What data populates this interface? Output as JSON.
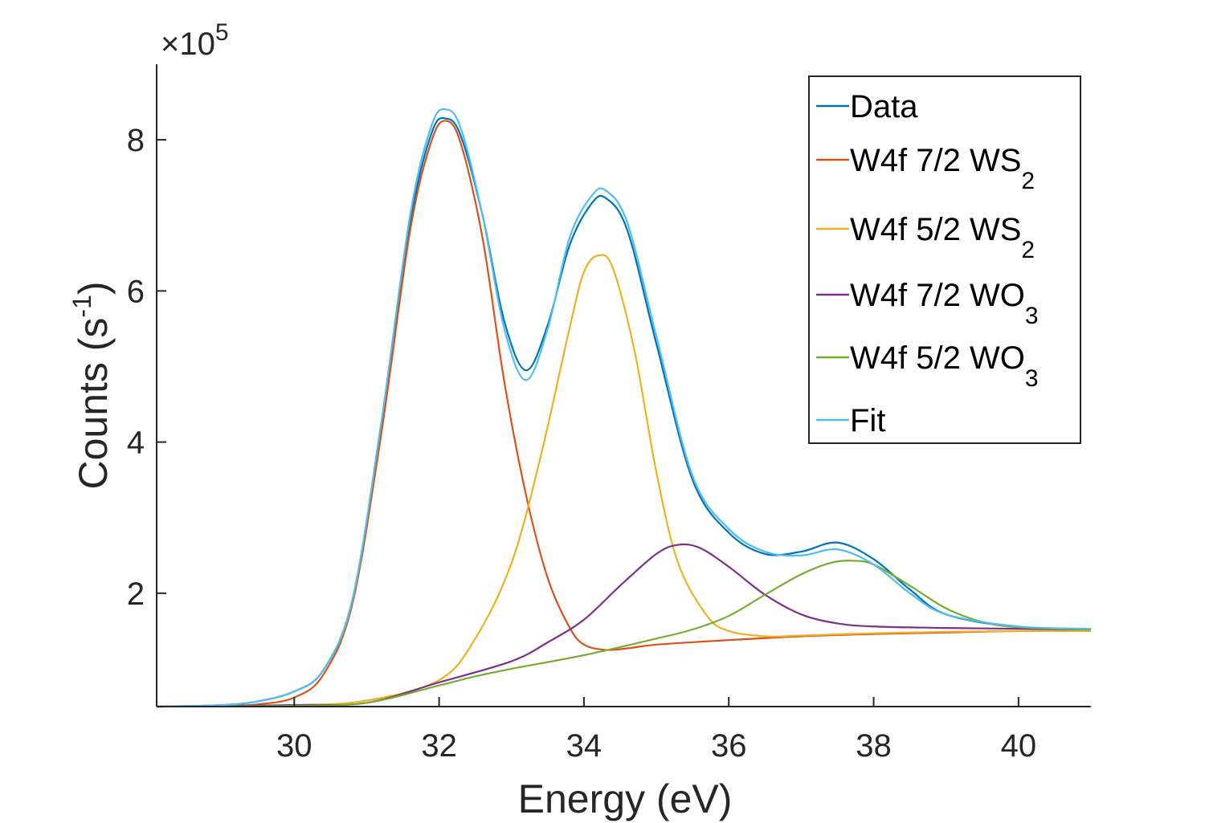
{
  "chart_data": {
    "type": "line",
    "xlabel": "Energy (eV)",
    "ylabel": "Counts (s",
    "ylabel_sup": "-1",
    "ylabel_close": ")",
    "exponent_prefix": "×10",
    "exponent_power": "5",
    "xlim": [
      28.1,
      41.0
    ],
    "ylim": [
      0.5,
      9.0
    ],
    "y_unit_multiplier": 100000,
    "x_ticks": [
      30,
      32,
      34,
      36,
      38,
      40
    ],
    "x_tick_labels": [
      "30",
      "32",
      "34",
      "36",
      "38",
      "40"
    ],
    "y_ticks": [
      2,
      4,
      6,
      8
    ],
    "y_tick_labels": [
      "2",
      "4",
      "6",
      "8"
    ],
    "grid": false,
    "legend_position": "top-right",
    "series": [
      {
        "name": "Data",
        "label_main": "Data",
        "label_sub": "",
        "color": "#0072BD",
        "x": [
          28.1,
          29.0,
          29.5,
          30.0,
          30.4,
          30.8,
          31.2,
          31.6,
          31.9,
          32.1,
          32.3,
          32.6,
          32.9,
          33.2,
          33.5,
          33.8,
          34.1,
          34.3,
          34.6,
          35.0,
          35.5,
          36.0,
          36.5,
          37.0,
          37.5,
          38.0,
          38.5,
          39.0,
          40.0,
          41.0
        ],
        "y": [
          0.5,
          0.52,
          0.57,
          0.7,
          0.98,
          1.9,
          4.2,
          6.9,
          8.1,
          8.28,
          8.05,
          7.0,
          5.6,
          4.95,
          5.55,
          6.6,
          7.15,
          7.23,
          6.8,
          5.3,
          3.5,
          2.8,
          2.52,
          2.55,
          2.67,
          2.45,
          2.05,
          1.72,
          1.55,
          1.52
        ]
      },
      {
        "name": "W4f 7/2 WS2",
        "label_main": "W4f 7/2 WS",
        "label_sub": "2",
        "color": "#D95319",
        "x": [
          28.1,
          29.0,
          29.5,
          30.0,
          30.4,
          30.8,
          31.2,
          31.6,
          31.9,
          32.1,
          32.3,
          32.6,
          32.9,
          33.2,
          33.5,
          33.8,
          34.0,
          34.3,
          34.6,
          35.0,
          36.0,
          37.0,
          38.0,
          39.0,
          40.0,
          41.0
        ],
        "y": [
          0.5,
          0.51,
          0.53,
          0.62,
          0.92,
          1.85,
          4.1,
          6.8,
          8.0,
          8.25,
          7.95,
          6.7,
          4.8,
          3.3,
          2.2,
          1.55,
          1.32,
          1.25,
          1.27,
          1.32,
          1.38,
          1.43,
          1.46,
          1.48,
          1.5,
          1.5
        ]
      },
      {
        "name": "W4f 5/2 WS2",
        "label_main": "W4f 5/2 WS",
        "label_sub": "2",
        "color": "#EDB120",
        "x": [
          28.1,
          30.0,
          31.0,
          32.0,
          32.5,
          33.0,
          33.4,
          33.8,
          34.0,
          34.2,
          34.4,
          34.7,
          35.0,
          35.3,
          35.7,
          36.0,
          36.5,
          37.0,
          38.0,
          39.0,
          40.0,
          41.0
        ],
        "y": [
          0.5,
          0.52,
          0.58,
          0.85,
          1.4,
          2.4,
          3.8,
          5.5,
          6.25,
          6.47,
          6.3,
          5.2,
          3.6,
          2.4,
          1.7,
          1.5,
          1.43,
          1.44,
          1.47,
          1.49,
          1.5,
          1.5
        ]
      },
      {
        "name": "W4f 7/2 WO3",
        "label_main": "W4f 7/2 WO",
        "label_sub": "3",
        "color": "#7E2F8E",
        "x": [
          28.1,
          30.0,
          31.0,
          32.0,
          33.0,
          33.5,
          34.0,
          34.5,
          35.0,
          35.3,
          35.6,
          36.0,
          36.5,
          37.0,
          37.5,
          38.0,
          39.0,
          40.0,
          41.0
        ],
        "y": [
          0.5,
          0.52,
          0.55,
          0.82,
          1.1,
          1.35,
          1.65,
          2.1,
          2.52,
          2.64,
          2.6,
          2.35,
          1.98,
          1.72,
          1.6,
          1.56,
          1.54,
          1.53,
          1.52
        ]
      },
      {
        "name": "W4f 5/2 WO3",
        "label_main": "W4f 5/2 WO",
        "label_sub": "3",
        "color": "#77AC30",
        "x": [
          28.1,
          30.0,
          31.0,
          32.0,
          32.5,
          33.0,
          34.0,
          35.0,
          35.5,
          36.0,
          36.5,
          37.0,
          37.4,
          37.7,
          38.0,
          38.5,
          39.0,
          39.5,
          40.0,
          41.0
        ],
        "y": [
          0.5,
          0.51,
          0.55,
          0.78,
          0.9,
          1.0,
          1.18,
          1.4,
          1.52,
          1.7,
          1.98,
          2.25,
          2.4,
          2.43,
          2.38,
          2.1,
          1.8,
          1.62,
          1.55,
          1.52
        ]
      },
      {
        "name": "Fit",
        "label_main": "Fit",
        "label_sub": "",
        "color": "#4DBEEE",
        "x": [
          28.1,
          29.0,
          29.5,
          30.0,
          30.4,
          30.8,
          31.2,
          31.6,
          31.9,
          32.1,
          32.3,
          32.6,
          32.9,
          33.2,
          33.5,
          33.8,
          34.1,
          34.3,
          34.6,
          35.0,
          35.5,
          36.0,
          36.5,
          37.0,
          37.5,
          38.0,
          38.5,
          39.0,
          40.0,
          41.0
        ],
        "y": [
          0.5,
          0.52,
          0.57,
          0.7,
          0.98,
          1.9,
          4.25,
          7.0,
          8.2,
          8.4,
          8.15,
          7.0,
          5.5,
          4.82,
          5.5,
          6.7,
          7.25,
          7.33,
          6.9,
          5.4,
          3.55,
          2.85,
          2.55,
          2.5,
          2.58,
          2.38,
          2.0,
          1.72,
          1.56,
          1.53
        ]
      }
    ]
  }
}
